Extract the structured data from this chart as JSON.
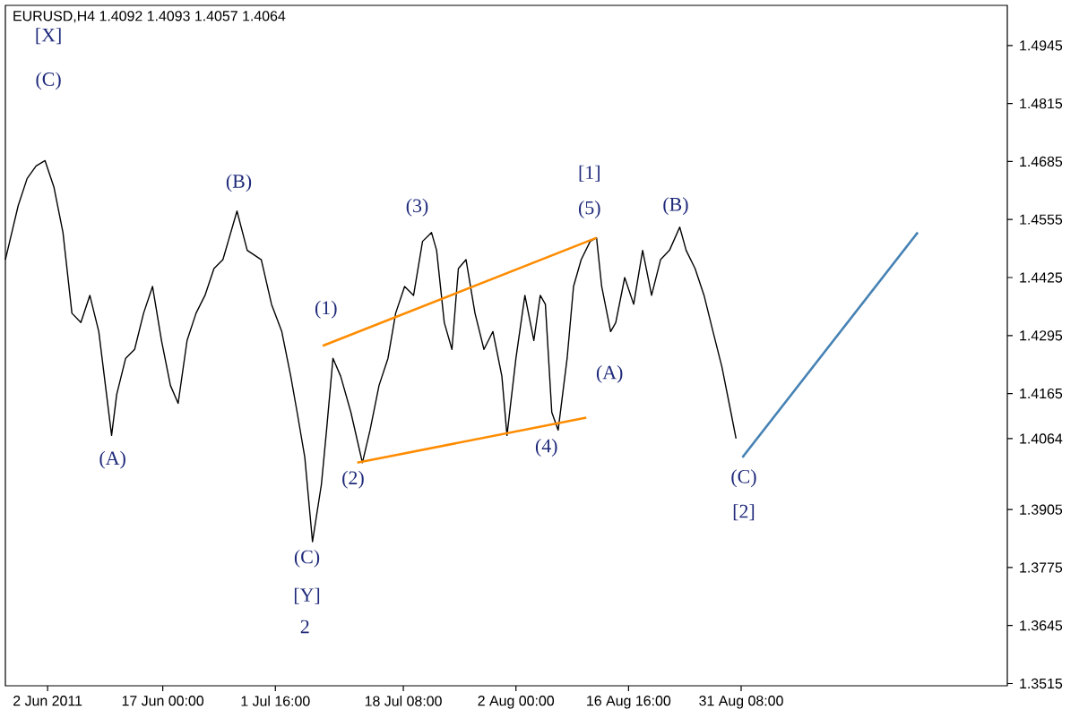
{
  "chart_data": {
    "type": "line",
    "title": "EURUSD,H4 1.4092 1.4093 1.4057 1.4064",
    "xlim": [
      "2011-05-27T12:00",
      "2011-10-05T00:00"
    ],
    "xticks": [
      {
        "value": "2011-06-02T00:00",
        "label": "2 Jun 2011"
      },
      {
        "value": "2011-06-17T00:00",
        "label": "17 Jun 00:00"
      },
      {
        "value": "2011-07-01T16:00",
        "label": "1 Jul 16:00"
      },
      {
        "value": "2011-07-18T08:00",
        "label": "18 Jul 08:00"
      },
      {
        "value": "2011-08-02T00:00",
        "label": "2 Aug 00:00"
      },
      {
        "value": "2011-08-16T16:00",
        "label": "16 Aug 16:00"
      },
      {
        "value": "2011-08-31T08:00",
        "label": "31 Aug 08:00"
      }
    ],
    "ylim": [
      1.351,
      1.5035
    ],
    "yticks": [
      1.3515,
      1.3645,
      1.3775,
      1.3905,
      1.4064,
      1.4165,
      1.4295,
      1.4425,
      1.4555,
      1.4685,
      1.4815,
      1.4945
    ],
    "marker": "none",
    "series": [
      {
        "color": "#000000",
        "x": [
          "2011-05-27T12:00",
          "2011-05-29T04:00",
          "2011-05-30T08:00",
          "2011-05-31T12:00",
          "2011-06-01T16:00",
          "2011-06-02T20:00",
          "2011-06-04T00:00",
          "2011-06-05T04:00",
          "2011-06-06T08:00",
          "2011-06-07T12:00",
          "2011-06-08T16:00",
          "2011-06-10T08:00",
          "2011-06-11T00:00",
          "2011-06-12T04:00",
          "2011-06-13T08:00",
          "2011-06-14T12:00",
          "2011-06-15T16:00",
          "2011-06-16T20:00",
          "2011-06-18T00:00",
          "2011-06-19T00:00",
          "2011-06-20T04:00",
          "2011-06-21T08:00",
          "2011-06-22T12:00",
          "2011-06-23T16:00",
          "2011-06-24T20:00",
          "2011-06-26T16:00",
          "2011-06-28T00:00",
          "2011-06-29T20:00",
          "2011-07-01T04:00",
          "2011-07-02T12:00",
          "2011-07-03T16:00",
          "2011-07-04T12:00",
          "2011-07-05T12:00",
          "2011-07-06T12:00",
          "2011-07-07T16:00",
          "2011-07-08T08:00",
          "2011-07-09T04:00",
          "2011-07-10T04:00",
          "2011-07-11T12:00",
          "2011-07-13T00:00",
          "2011-07-14T00:00",
          "2011-07-15T04:00",
          "2011-07-16T08:00",
          "2011-07-17T08:00",
          "2011-07-18T12:00",
          "2011-07-19T16:00",
          "2011-07-20T20:00",
          "2011-07-22T00:00",
          "2011-07-22T16:00",
          "2011-07-23T16:00",
          "2011-07-24T16:00",
          "2011-07-25T12:00",
          "2011-07-26T12:00",
          "2011-07-27T16:00",
          "2011-07-28T20:00",
          "2011-07-30T00:00",
          "2011-07-31T04:00",
          "2011-07-31T20:00",
          "2011-08-02T00:00",
          "2011-08-03T04:00",
          "2011-08-04T08:00",
          "2011-08-05T04:00",
          "2011-08-05T20:00",
          "2011-08-06T16:00",
          "2011-08-07T12:00",
          "2011-08-08T16:00",
          "2011-08-09T12:00",
          "2011-08-10T12:00",
          "2011-08-11T16:00",
          "2011-08-12T12:00",
          "2011-08-13T04:00",
          "2011-08-14T08:00",
          "2011-08-15T00:00",
          "2011-08-16T04:00",
          "2011-08-17T08:00",
          "2011-08-18T12:00",
          "2011-08-19T16:00",
          "2011-08-20T20:00",
          "2011-08-22T00:00",
          "2011-08-23T08:00",
          "2011-08-24T04:00",
          "2011-08-25T08:00",
          "2011-08-26T12:00",
          "2011-08-27T16:00",
          "2011-08-28T20:00",
          "2011-08-30T00:00",
          "2011-08-30T16:00"
        ],
        "values": [
          1.4465,
          1.4586,
          1.4647,
          1.4675,
          1.4687,
          1.4627,
          1.4526,
          1.4345,
          1.4324,
          1.4385,
          1.4304,
          1.4071,
          1.4163,
          1.4244,
          1.4264,
          1.4345,
          1.4405,
          1.4284,
          1.4183,
          1.4143,
          1.4284,
          1.4345,
          1.4385,
          1.4445,
          1.4465,
          1.4574,
          1.4486,
          1.4465,
          1.4365,
          1.4304,
          1.4204,
          1.4123,
          1.4022,
          1.3833,
          1.3962,
          1.4083,
          1.4244,
          1.4204,
          1.4123,
          1.401,
          1.4083,
          1.4183,
          1.4244,
          1.4345,
          1.4405,
          1.4385,
          1.4506,
          1.4526,
          1.4486,
          1.4324,
          1.4264,
          1.4445,
          1.4465,
          1.4345,
          1.4264,
          1.4304,
          1.4204,
          1.4071,
          1.4244,
          1.4385,
          1.4284,
          1.4385,
          1.4365,
          1.4123,
          1.4083,
          1.4244,
          1.4405,
          1.4465,
          1.4506,
          1.4514,
          1.4405,
          1.4304,
          1.4324,
          1.4425,
          1.4365,
          1.4486,
          1.4385,
          1.4465,
          1.4486,
          1.4538,
          1.4486,
          1.4445,
          1.4385,
          1.4304,
          1.4224,
          1.4123,
          1.4064
        ]
      },
      {
        "color": "#ff8c00",
        "x": [
          "2011-07-07T20:00",
          "2011-08-12T12:00"
        ],
        "values": [
          1.4272,
          1.4514
        ]
      },
      {
        "color": "#ff8c00",
        "x": [
          "2011-07-12T08:00",
          "2011-08-11T04:00"
        ],
        "values": [
          1.401,
          1.4111
        ]
      },
      {
        "color": "#4682b4",
        "x": [
          "2011-08-31T12:00",
          "2011-09-23T08:00"
        ],
        "values": [
          1.4022,
          1.4526
        ]
      }
    ],
    "annotations": [
      "[X]",
      "(C)",
      "(A)",
      "(B)",
      "(C)",
      "[Y]",
      "2",
      "(1)",
      "(2)",
      "(3)",
      "(4)",
      "[1]",
      "(5)",
      "(A)",
      "(B)",
      "(C)",
      "[2]"
    ]
  }
}
